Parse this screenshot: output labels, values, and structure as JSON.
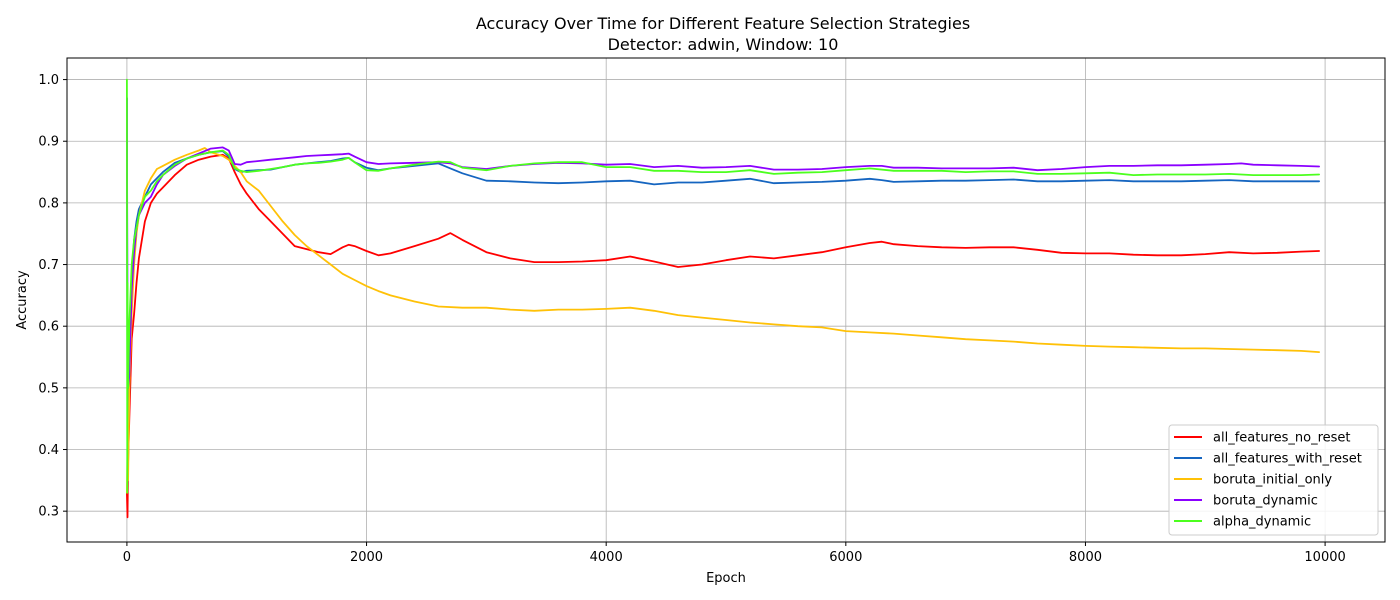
{
  "chart_data": {
    "type": "line",
    "title": "Accuracy Over Time for Different Feature Selection Strategies",
    "subtitle": "Detector: adwin, Window: 10",
    "xlabel": "Epoch",
    "ylabel": "Accuracy",
    "xlim": [
      -500,
      10500
    ],
    "ylim": [
      0.25,
      1.035
    ],
    "xticks": [
      0,
      2000,
      4000,
      6000,
      8000,
      10000
    ],
    "xtick_labels": [
      "0",
      "2000",
      "4000",
      "6000",
      "8000",
      "10000"
    ],
    "yticks": [
      0.3,
      0.4,
      0.5,
      0.6,
      0.7,
      0.8,
      0.9,
      1.0
    ],
    "ytick_labels": [
      "0.3",
      "0.4",
      "0.5",
      "0.6",
      "0.7",
      "0.8",
      "0.9",
      "1.0"
    ],
    "grid": true,
    "legend_position": "lower-right",
    "series": [
      {
        "name": "all_features_no_reset",
        "color": "#ff0000",
        "x": [
          0,
          5,
          10,
          20,
          40,
          60,
          80,
          100,
          150,
          200,
          250,
          300,
          400,
          500,
          600,
          700,
          800,
          850,
          900,
          950,
          1000,
          1100,
          1200,
          1300,
          1400,
          1500,
          1600,
          1700,
          1800,
          1850,
          1900,
          2000,
          2100,
          2200,
          2400,
          2600,
          2700,
          2800,
          3000,
          3200,
          3400,
          3600,
          3800,
          4000,
          4200,
          4400,
          4600,
          4800,
          5000,
          5200,
          5400,
          5600,
          5800,
          6000,
          6200,
          6300,
          6400,
          6600,
          6800,
          7000,
          7200,
          7400,
          7600,
          7800,
          8000,
          8200,
          8400,
          8600,
          8800,
          9000,
          9200,
          9400,
          9600,
          9800,
          9950
        ],
        "y": [
          0.33,
          0.29,
          0.38,
          0.45,
          0.58,
          0.62,
          0.67,
          0.71,
          0.77,
          0.8,
          0.815,
          0.825,
          0.845,
          0.862,
          0.87,
          0.875,
          0.878,
          0.872,
          0.85,
          0.83,
          0.815,
          0.79,
          0.77,
          0.75,
          0.73,
          0.725,
          0.72,
          0.717,
          0.728,
          0.732,
          0.73,
          0.722,
          0.715,
          0.718,
          0.73,
          0.742,
          0.751,
          0.74,
          0.72,
          0.71,
          0.704,
          0.704,
          0.705,
          0.707,
          0.713,
          0.705,
          0.696,
          0.7,
          0.707,
          0.713,
          0.71,
          0.715,
          0.72,
          0.728,
          0.735,
          0.737,
          0.733,
          0.73,
          0.728,
          0.727,
          0.728,
          0.728,
          0.724,
          0.719,
          0.718,
          0.718,
          0.716,
          0.715,
          0.715,
          0.717,
          0.72,
          0.718,
          0.719,
          0.721,
          0.722
        ]
      },
      {
        "name": "all_features_with_reset",
        "color": "#1565c0",
        "x": [
          0,
          5,
          10,
          20,
          40,
          60,
          80,
          100,
          150,
          200,
          250,
          300,
          400,
          500,
          600,
          700,
          800,
          850,
          900,
          950,
          1000,
          1100,
          1200,
          1300,
          1400,
          1500,
          1600,
          1700,
          1800,
          1850,
          1900,
          2000,
          2100,
          2200,
          2400,
          2600,
          2700,
          2800,
          3000,
          3200,
          3400,
          3600,
          3800,
          4000,
          4200,
          4400,
          4600,
          4800,
          5000,
          5200,
          5400,
          5600,
          5800,
          6000,
          6200,
          6300,
          6400,
          6600,
          6800,
          7000,
          7200,
          7400,
          7600,
          7800,
          8000,
          8200,
          8400,
          8600,
          8800,
          9000,
          9200,
          9400,
          9600,
          9800,
          9950
        ],
        "y": [
          0.97,
          0.45,
          0.39,
          0.5,
          0.68,
          0.74,
          0.77,
          0.79,
          0.81,
          0.83,
          0.84,
          0.85,
          0.865,
          0.872,
          0.878,
          0.882,
          0.884,
          0.875,
          0.855,
          0.85,
          0.852,
          0.853,
          0.854,
          0.858,
          0.862,
          0.864,
          0.866,
          0.868,
          0.872,
          0.873,
          0.866,
          0.857,
          0.853,
          0.856,
          0.86,
          0.864,
          0.856,
          0.848,
          0.836,
          0.835,
          0.833,
          0.832,
          0.833,
          0.835,
          0.836,
          0.83,
          0.833,
          0.833,
          0.836,
          0.839,
          0.832,
          0.833,
          0.834,
          0.836,
          0.839,
          0.837,
          0.834,
          0.835,
          0.836,
          0.836,
          0.837,
          0.838,
          0.835,
          0.835,
          0.836,
          0.837,
          0.835,
          0.835,
          0.835,
          0.836,
          0.837,
          0.835,
          0.835,
          0.835,
          0.835
        ]
      },
      {
        "name": "boruta_initial_only",
        "color": "#ffc107",
        "x": [
          0,
          5,
          10,
          20,
          40,
          60,
          80,
          100,
          150,
          200,
          250,
          300,
          400,
          500,
          600,
          650,
          700,
          800,
          850,
          900,
          950,
          1000,
          1100,
          1200,
          1300,
          1400,
          1500,
          1600,
          1700,
          1800,
          1900,
          2000,
          2100,
          2200,
          2400,
          2600,
          2800,
          3000,
          3200,
          3400,
          3600,
          3800,
          4000,
          4200,
          4400,
          4600,
          4800,
          5000,
          5200,
          5400,
          5600,
          5800,
          6000,
          6200,
          6400,
          6600,
          6800,
          7000,
          7200,
          7400,
          7600,
          7800,
          8000,
          8200,
          8400,
          8600,
          8800,
          9000,
          9200,
          9400,
          9600,
          9800,
          9950
        ],
        "y": [
          0.33,
          0.4,
          0.35,
          0.5,
          0.62,
          0.7,
          0.75,
          0.78,
          0.82,
          0.84,
          0.855,
          0.86,
          0.87,
          0.878,
          0.885,
          0.889,
          0.882,
          0.876,
          0.87,
          0.86,
          0.85,
          0.835,
          0.82,
          0.795,
          0.77,
          0.748,
          0.73,
          0.715,
          0.7,
          0.685,
          0.675,
          0.665,
          0.657,
          0.65,
          0.64,
          0.632,
          0.63,
          0.63,
          0.627,
          0.625,
          0.627,
          0.627,
          0.628,
          0.63,
          0.625,
          0.618,
          0.614,
          0.61,
          0.606,
          0.603,
          0.6,
          0.598,
          0.592,
          0.59,
          0.588,
          0.585,
          0.582,
          0.579,
          0.577,
          0.575,
          0.572,
          0.57,
          0.568,
          0.567,
          0.566,
          0.565,
          0.564,
          0.564,
          0.563,
          0.562,
          0.561,
          0.56,
          0.558
        ]
      },
      {
        "name": "boruta_dynamic",
        "color": "#8b00ff",
        "x": [
          0,
          5,
          10,
          20,
          40,
          60,
          80,
          100,
          150,
          200,
          250,
          300,
          400,
          500,
          600,
          700,
          800,
          850,
          900,
          950,
          1000,
          1100,
          1200,
          1300,
          1400,
          1500,
          1600,
          1700,
          1800,
          1850,
          1900,
          2000,
          2100,
          2200,
          2400,
          2600,
          2700,
          2800,
          3000,
          3200,
          3400,
          3600,
          3800,
          4000,
          4200,
          4400,
          4600,
          4800,
          5000,
          5200,
          5400,
          5600,
          5800,
          6000,
          6200,
          6300,
          6400,
          6600,
          6800,
          7000,
          7200,
          7400,
          7600,
          7800,
          8000,
          8200,
          8400,
          8600,
          8800,
          9000,
          9200,
          9300,
          9400,
          9600,
          9800,
          9950
        ],
        "y": [
          0.97,
          0.55,
          0.5,
          0.52,
          0.66,
          0.72,
          0.76,
          0.78,
          0.8,
          0.81,
          0.83,
          0.845,
          0.86,
          0.872,
          0.88,
          0.888,
          0.89,
          0.885,
          0.863,
          0.862,
          0.866,
          0.868,
          0.87,
          0.872,
          0.874,
          0.876,
          0.877,
          0.878,
          0.879,
          0.88,
          0.875,
          0.866,
          0.863,
          0.864,
          0.865,
          0.866,
          0.864,
          0.858,
          0.855,
          0.86,
          0.863,
          0.865,
          0.864,
          0.862,
          0.863,
          0.858,
          0.86,
          0.857,
          0.858,
          0.86,
          0.854,
          0.854,
          0.855,
          0.858,
          0.86,
          0.86,
          0.857,
          0.857,
          0.856,
          0.856,
          0.856,
          0.857,
          0.853,
          0.855,
          0.858,
          0.86,
          0.86,
          0.861,
          0.861,
          0.862,
          0.863,
          0.864,
          0.862,
          0.861,
          0.86,
          0.859
        ]
      },
      {
        "name": "alpha_dynamic",
        "color": "#4cff1e",
        "x": [
          0,
          3,
          5,
          10,
          20,
          40,
          60,
          80,
          100,
          150,
          200,
          250,
          300,
          400,
          500,
          600,
          700,
          800,
          850,
          900,
          950,
          1000,
          1100,
          1200,
          1300,
          1400,
          1500,
          1600,
          1700,
          1800,
          1850,
          1900,
          2000,
          2100,
          2200,
          2400,
          2600,
          2700,
          2800,
          3000,
          3200,
          3400,
          3600,
          3800,
          4000,
          4200,
          4400,
          4600,
          4800,
          5000,
          5200,
          5400,
          5600,
          5800,
          6000,
          6200,
          6400,
          6600,
          6800,
          7000,
          7200,
          7400,
          7600,
          7800,
          8000,
          8200,
          8400,
          8600,
          8800,
          9000,
          9200,
          9400,
          9600,
          9800,
          9950
        ],
        "y": [
          1.0,
          0.33,
          0.67,
          0.5,
          0.6,
          0.7,
          0.74,
          0.76,
          0.78,
          0.81,
          0.82,
          0.835,
          0.845,
          0.862,
          0.872,
          0.878,
          0.882,
          0.885,
          0.878,
          0.856,
          0.852,
          0.85,
          0.852,
          0.855,
          0.858,
          0.862,
          0.864,
          0.865,
          0.867,
          0.87,
          0.873,
          0.866,
          0.853,
          0.852,
          0.856,
          0.862,
          0.867,
          0.866,
          0.857,
          0.853,
          0.86,
          0.864,
          0.866,
          0.866,
          0.858,
          0.858,
          0.852,
          0.852,
          0.85,
          0.85,
          0.853,
          0.847,
          0.849,
          0.85,
          0.853,
          0.856,
          0.852,
          0.852,
          0.852,
          0.85,
          0.851,
          0.851,
          0.847,
          0.847,
          0.848,
          0.849,
          0.845,
          0.846,
          0.846,
          0.846,
          0.847,
          0.845,
          0.845,
          0.845,
          0.846
        ]
      }
    ]
  }
}
